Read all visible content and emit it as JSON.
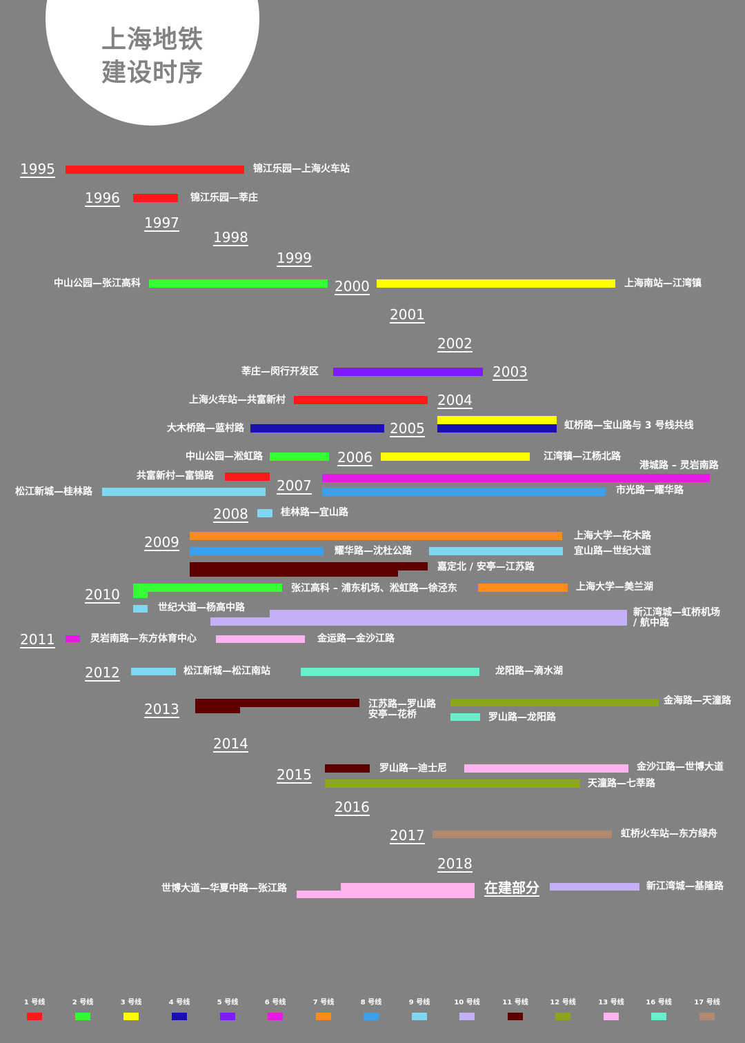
{
  "title": {
    "line1": "上海地铁",
    "line2": "建设时序"
  },
  "years": [
    "1995",
    "1996",
    "1997",
    "1998",
    "1999",
    "2000",
    "2001",
    "2002",
    "2003",
    "2004",
    "2005",
    "2006",
    "2007",
    "2008",
    "2009",
    "2010",
    "2011",
    "2012",
    "2013",
    "2014",
    "2015",
    "2016",
    "2017",
    "2018"
  ],
  "in_construction": "在建部分",
  "segments": [
    "锦江乐园—上海火车站",
    "锦江乐园—莘庄",
    "中山公园—张江高科",
    "上海南站—江湾镇",
    "莘庄—闵行开发区",
    "上海火车站—共富新村",
    "大木桥路—蓝村路",
    "虹桥路—宝山路与 3 号线共线",
    "中山公园—淞虹路",
    "江湾镇—江杨北路",
    "共富新村—富锦路",
    "港城路 – 灵岩南路",
    "松江新城—桂林路",
    "市光路—耀华路",
    "桂林路—宜山路",
    "上海大学—花木路",
    "耀华路—沈杜公路",
    "宜山路—世纪大道",
    "嘉定北 / 安亭—江苏路",
    "张江高科 – 浦东机场、淞虹路—徐泾东",
    "上海大学—美兰湖",
    "世纪大道—杨高中路",
    "新江湾城—虹桥机场",
    "/ 航中路",
    "灵岩南路—东方体育中心",
    "金运路—金沙江路",
    "松江新城—松江南站",
    "龙阳路—滴水湖",
    "江苏路—罗山路",
    "安亭—花桥",
    "金海路—天潼路",
    "罗山路—龙阳路",
    "罗山路—迪士尼",
    "金沙江路—世博大道",
    "天潼路—七莘路",
    "虹桥火车站—东方绿舟",
    "世博大道—华夏中路—张江路",
    "新江湾城—基隆路"
  ],
  "legend": [
    {
      "label": "1 号线",
      "color": "#ff1a1a"
    },
    {
      "label": "2 号线",
      "color": "#33ff33"
    },
    {
      "label": "3 号线",
      "color": "#ffff00"
    },
    {
      "label": "4 号线",
      "color": "#1a0fb0"
    },
    {
      "label": "5 号线",
      "color": "#7f1aff"
    },
    {
      "label": "6 号线",
      "color": "#e61ae6"
    },
    {
      "label": "7 号线",
      "color": "#ff8c1a"
    },
    {
      "label": "8 号线",
      "color": "#3aa0ee"
    },
    {
      "label": "9 号线",
      "color": "#80d8f0"
    },
    {
      "label": "10 号线",
      "color": "#c4b0f5"
    },
    {
      "label": "11 号线",
      "color": "#5c0000"
    },
    {
      "label": "12 号线",
      "color": "#8aa61a"
    },
    {
      "label": "13 号线",
      "color": "#ffb3f0"
    },
    {
      "label": "16 号线",
      "color": "#66f0cc"
    },
    {
      "label": "17 号线",
      "color": "#b08a6e"
    }
  ]
}
